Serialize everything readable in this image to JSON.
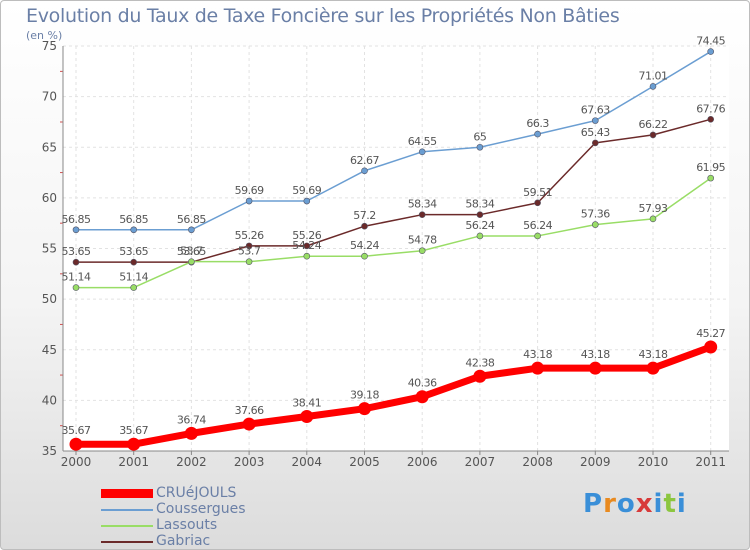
{
  "header": {
    "title": "Evolution du Taux de Taxe Foncière sur les Propriétés Non Bâties",
    "unit": "(en %)"
  },
  "brand": {
    "text": "Proxiti",
    "letters": [
      "P",
      "r",
      "o",
      "x",
      "i",
      "t",
      "i"
    ],
    "colors": [
      "#3a8fd8",
      "#e98a1f",
      "#3a8fd8",
      "#d83a3a",
      "#3a8fd8",
      "#8cc63f",
      "#3a8fd8"
    ]
  },
  "chart_data": {
    "type": "line",
    "x": [
      "2000",
      "2001",
      "2002",
      "2003",
      "2004",
      "2005",
      "2006",
      "2007",
      "2008",
      "2009",
      "2010",
      "2011"
    ],
    "ylim": [
      35,
      75
    ],
    "yticks": [
      35,
      40,
      45,
      50,
      55,
      60,
      65,
      70,
      75
    ],
    "grid": true,
    "legend_position": "bottom-left",
    "series": [
      {
        "name": "CRUéJOULS",
        "color": "#ff0000",
        "values": [
          35.67,
          35.67,
          36.74,
          37.66,
          38.41,
          39.18,
          40.36,
          42.38,
          43.18,
          43.18,
          43.18,
          45.27
        ],
        "labels": [
          "35.67",
          "35.67",
          "36.74",
          "37.66",
          "38.41",
          "39.18",
          "40.36",
          "42.38",
          "43.18",
          "43.18",
          "43.18",
          "45.27"
        ]
      },
      {
        "name": "Coussergues",
        "color": "#6b9ed2",
        "values": [
          56.85,
          56.85,
          56.85,
          59.69,
          59.69,
          62.67,
          64.55,
          65,
          66.3,
          67.63,
          71.01,
          74.45
        ],
        "labels": [
          "56.85",
          "56.85",
          "56.85",
          "59.69",
          "59.69",
          "62.67",
          "64.55",
          "65",
          "66.3",
          "67.63",
          "71.01",
          "74.45"
        ]
      },
      {
        "name": "Lassouts",
        "color": "#99dd66",
        "values": [
          51.14,
          51.14,
          53.7,
          53.7,
          54.24,
          54.24,
          54.78,
          56.24,
          56.24,
          57.36,
          57.93,
          61.95
        ],
        "labels": [
          "51.14",
          "51.14",
          "53.7",
          "53.7",
          "54.24",
          "54.24",
          "54.78",
          "56.24",
          "56.24",
          "57.36",
          "57.93",
          "61.95"
        ]
      },
      {
        "name": "Gabriac",
        "color": "#6b2a2a",
        "values": [
          53.65,
          53.65,
          53.65,
          55.26,
          55.26,
          57.2,
          58.34,
          58.34,
          59.51,
          65.43,
          66.22,
          67.76
        ],
        "labels": [
          "53.65",
          "53.65",
          "53.65",
          "55.26",
          "55.26",
          "57.2",
          "58.34",
          "58.34",
          "59.51",
          "65.43",
          "66.22",
          "67.76"
        ]
      }
    ]
  }
}
